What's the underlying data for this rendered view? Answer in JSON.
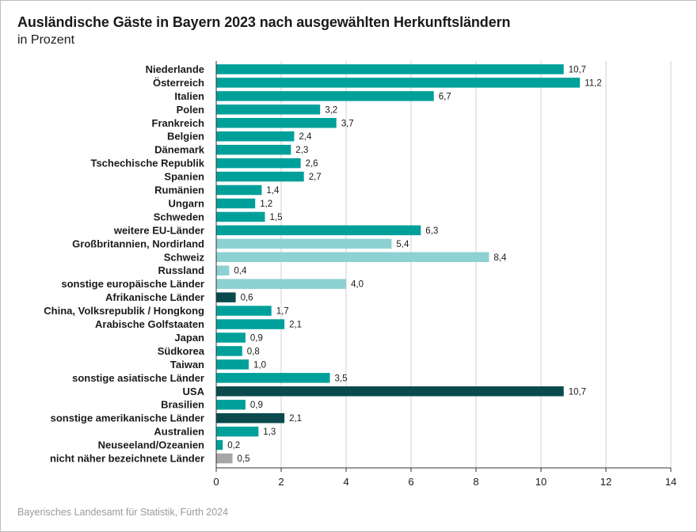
{
  "chart_data": {
    "type": "bar",
    "orientation": "horizontal",
    "title": "Ausländische Gäste in Bayern 2023 nach ausgewählten Herkunftsländern",
    "subtitle": "in Prozent",
    "source": "Bayerisches Landesamt für Statistik, Fürth 2024",
    "xlim": [
      0,
      14
    ],
    "xticks": [
      0,
      2,
      4,
      6,
      8,
      10,
      12,
      14
    ],
    "grid": "vertical",
    "bars": [
      {
        "label": "Niederlande",
        "value": 10.7,
        "display": "10,7",
        "color": "#00a09a"
      },
      {
        "label": "Österreich",
        "value": 11.2,
        "display": "11,2",
        "color": "#00a09a"
      },
      {
        "label": "Italien",
        "value": 6.7,
        "display": "6,7",
        "color": "#00a09a"
      },
      {
        "label": "Polen",
        "value": 3.2,
        "display": "3,2",
        "color": "#00a09a"
      },
      {
        "label": "Frankreich",
        "value": 3.7,
        "display": "3,7",
        "color": "#00a09a"
      },
      {
        "label": "Belgien",
        "value": 2.4,
        "display": "2,4",
        "color": "#00a09a"
      },
      {
        "label": "Dänemark",
        "value": 2.3,
        "display": "2,3",
        "color": "#00a09a"
      },
      {
        "label": "Tschechische Republik",
        "value": 2.6,
        "display": "2,6",
        "color": "#00a09a"
      },
      {
        "label": "Spanien",
        "value": 2.7,
        "display": "2,7",
        "color": "#00a09a"
      },
      {
        "label": "Rumänien",
        "value": 1.4,
        "display": "1,4",
        "color": "#00a09a"
      },
      {
        "label": "Ungarn",
        "value": 1.2,
        "display": "1,2",
        "color": "#00a09a"
      },
      {
        "label": "Schweden",
        "value": 1.5,
        "display": "1,5",
        "color": "#00a09a"
      },
      {
        "label": "weitere EU-Länder",
        "value": 6.3,
        "display": "6,3",
        "color": "#00a09a"
      },
      {
        "label": "Großbritannien, Nordirland",
        "value": 5.4,
        "display": "5,4",
        "color": "#8dd1d3"
      },
      {
        "label": "Schweiz",
        "value": 8.4,
        "display": "8,4",
        "color": "#8dd1d3"
      },
      {
        "label": "Russland",
        "value": 0.4,
        "display": "0,4",
        "color": "#8dd1d3"
      },
      {
        "label": "sonstige europäische Länder",
        "value": 4.0,
        "display": "4,0",
        "color": "#8dd1d3"
      },
      {
        "label": "Afrikanische Länder",
        "value": 0.6,
        "display": "0,6",
        "color": "#0a4a4d"
      },
      {
        "label": "China, Volksrepublik / Hongkong",
        "value": 1.7,
        "display": "1,7",
        "color": "#00a09a"
      },
      {
        "label": "Arabische Golfstaaten",
        "value": 2.1,
        "display": "2,1",
        "color": "#00a09a"
      },
      {
        "label": "Japan",
        "value": 0.9,
        "display": "0,9",
        "color": "#00a09a"
      },
      {
        "label": "Südkorea",
        "value": 0.8,
        "display": "0,8",
        "color": "#00a09a"
      },
      {
        "label": "Taiwan",
        "value": 1.0,
        "display": "1,0",
        "color": "#00a09a"
      },
      {
        "label": "sonstige asiatische Länder",
        "value": 3.5,
        "display": "3,5",
        "color": "#00a09a"
      },
      {
        "label": "USA",
        "value": 10.7,
        "display": "10,7",
        "color": "#0a4a4d"
      },
      {
        "label": "Brasilien",
        "value": 0.9,
        "display": "0,9",
        "color": "#00a09a"
      },
      {
        "label": "sonstige amerikanische Länder",
        "value": 2.1,
        "display": "2,1",
        "color": "#0a4a4d"
      },
      {
        "label": "Australien",
        "value": 1.3,
        "display": "1,3",
        "color": "#00a09a"
      },
      {
        "label": "Neuseeland/Ozeanien",
        "value": 0.2,
        "display": "0,2",
        "color": "#00a09a"
      },
      {
        "label": "nicht näher bezeichnete Länder",
        "value": 0.5,
        "display": "0,5",
        "color": "#a6a6a6"
      }
    ]
  }
}
